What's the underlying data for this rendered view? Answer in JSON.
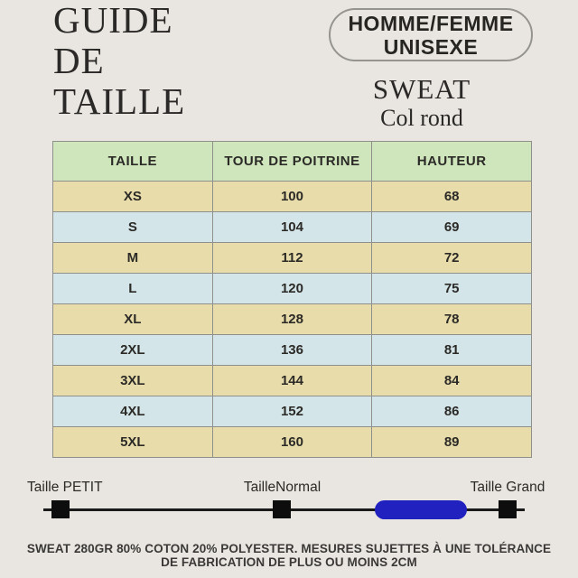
{
  "colors": {
    "page_bg": "#e9e6e1",
    "ink": "#2a2927",
    "table_header_bg": "#cfe6bd",
    "table_row_odd": "#e8dcaa",
    "table_row_even": "#d4e5ea",
    "table_border": "#8f8f8b",
    "slider_pill": "#2121bf",
    "slider_marker": "#0d0d0d"
  },
  "header": {
    "title": "GUIDE\nDE\nTAILLE",
    "badge_line1": "HOMME/FEMME",
    "badge_line2": "UNISEXE",
    "product_name": "SWEAT",
    "product_subtitle": "Col rond"
  },
  "table": {
    "headers": [
      "TAILLE",
      "TOUR DE POITRINE",
      "HAUTEUR"
    ],
    "rows": [
      [
        "XS",
        "100",
        "68"
      ],
      [
        "S",
        "104",
        "69"
      ],
      [
        "M",
        "112",
        "72"
      ],
      [
        "L",
        "120",
        "75"
      ],
      [
        "XL",
        "128",
        "78"
      ],
      [
        "2XL",
        "136",
        "81"
      ],
      [
        "3XL",
        "144",
        "84"
      ],
      [
        "4XL",
        "152",
        "86"
      ],
      [
        "5XL",
        "160",
        "89"
      ]
    ]
  },
  "slider": {
    "label_small": "Taille PETIT",
    "label_normal": "TailleNormal",
    "label_large": "Taille Grand"
  },
  "footer": {
    "line1": "SWEAT 280GR 80% COTON 20% POLYESTER. MESURES SUJETTES À UNE TOLÉRANCE",
    "line2": "DE FABRICATION DE PLUS OU MOINS 2CM"
  }
}
